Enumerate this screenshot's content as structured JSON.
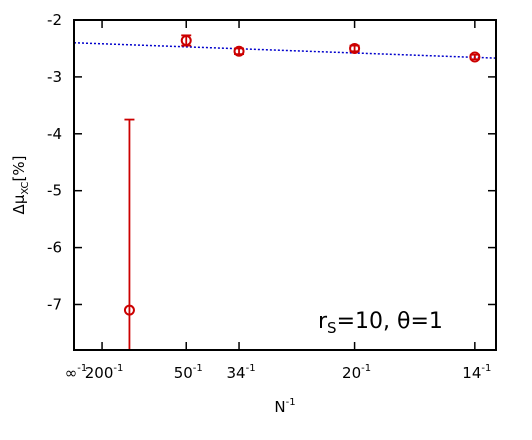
{
  "chart_data": {
    "type": "scatter",
    "title": "",
    "xlabel": "N",
    "xlabel_sup": "-1",
    "ylabel": "Δμ",
    "ylabel_sub": "XC",
    "ylabel_unit": "[%]",
    "x_scale": "reciprocal",
    "xlim": [
      0,
      0.0752
    ],
    "ylim": [
      -7.8,
      -2
    ],
    "grid": false,
    "x_ticks": [
      {
        "value": 0,
        "base": "∞",
        "sup": "-1"
      },
      {
        "value": 0.005,
        "base": "200",
        "sup": "-1"
      },
      {
        "value": 0.02,
        "base": "50",
        "sup": "-1"
      },
      {
        "value": 0.02941,
        "base": "34",
        "sup": "-1"
      },
      {
        "value": 0.05,
        "base": "20",
        "sup": "-1"
      },
      {
        "value": 0.07143,
        "base": "14",
        "sup": "-1"
      }
    ],
    "y_ticks": [
      {
        "value": -2,
        "label": "-2"
      },
      {
        "value": -3,
        "label": "-3"
      },
      {
        "value": -4,
        "label": "-4"
      },
      {
        "value": -5,
        "label": "-5"
      },
      {
        "value": -6,
        "label": "-6"
      },
      {
        "value": -7,
        "label": "-7"
      }
    ],
    "series": [
      {
        "color": "#cc0000",
        "marker": "open-circle",
        "points": [
          {
            "x": 0.00988,
            "y": -7.1,
            "yerr_low": -7.8,
            "yerr_high": -3.75
          },
          {
            "x": 0.02,
            "y": -2.36,
            "yerr_low": -2.45,
            "yerr_high": -2.27
          },
          {
            "x": 0.02941,
            "y": -2.55,
            "yerr_low": -2.6,
            "yerr_high": -2.5
          },
          {
            "x": 0.05,
            "y": -2.5,
            "yerr_low": -2.55,
            "yerr_high": -2.45
          },
          {
            "x": 0.07143,
            "y": -2.65,
            "yerr_low": -2.69,
            "yerr_high": -2.61
          }
        ]
      },
      {
        "color": "#0000cc",
        "style": "dotted-line",
        "fit": {
          "x": [
            0,
            0.0752
          ],
          "y": [
            -2.4,
            -2.67
          ]
        }
      }
    ],
    "annotation": {
      "base_r": "r",
      "sub_s": "S",
      "rest": "=10, θ=1"
    }
  }
}
